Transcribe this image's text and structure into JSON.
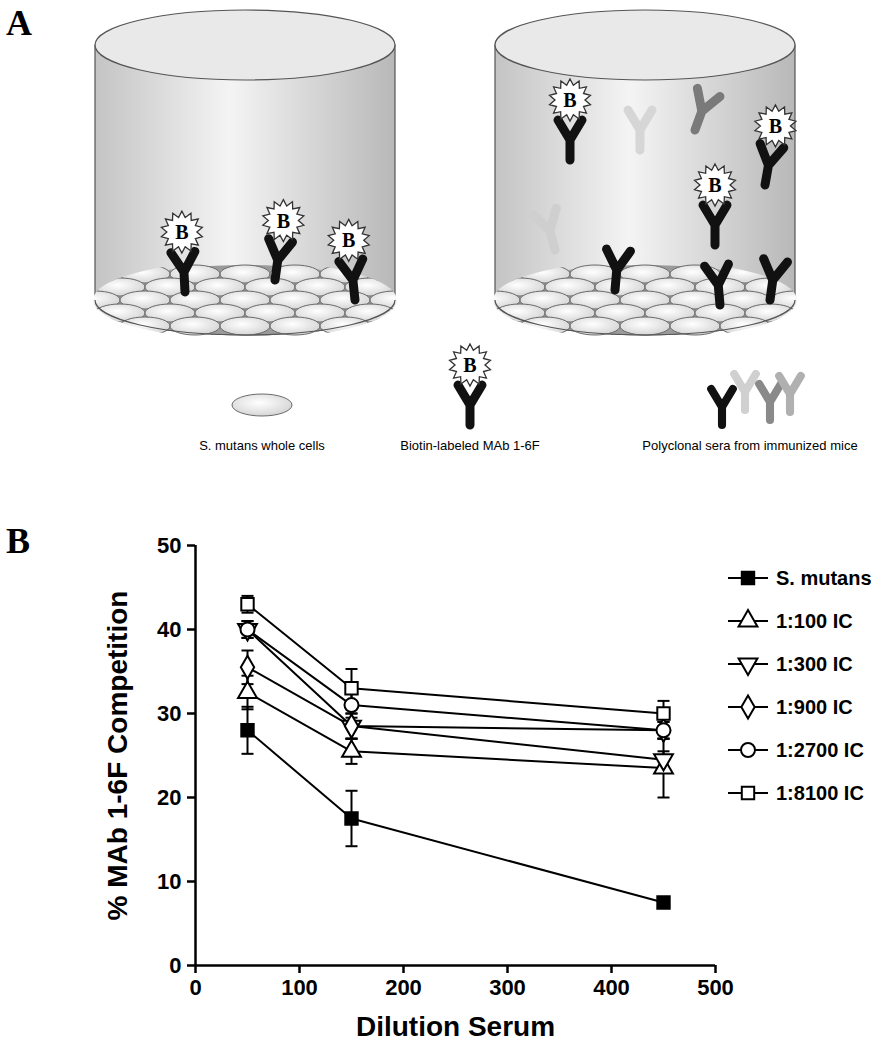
{
  "diagram": {
    "panel_label": "A",
    "biotin_mark": "B",
    "legend": {
      "cells": "S. mutans whole cells",
      "biotin_antibody": "Biotin-labeled MAb 1-6F",
      "polyclonal_sera": "Polyclonal sera from immunized mice"
    }
  },
  "chart_data": {
    "panel_label": "B",
    "type": "line",
    "x_label": "Dilution Serum",
    "y_label": "% MAb 1-6F Competition",
    "x": [
      50,
      150,
      450
    ],
    "xlim": [
      0,
      500
    ],
    "xticks": [
      0,
      100,
      200,
      300,
      400,
      500
    ],
    "ylim": [
      0,
      50
    ],
    "yticks": [
      0,
      10,
      20,
      30,
      40,
      50
    ],
    "grid": false,
    "legend": "right",
    "series": [
      {
        "name": "S. mutans",
        "color": "#000000",
        "marker": "filled_square",
        "values": [
          28,
          17.5,
          7.5
        ],
        "errors": [
          2.8,
          3.3,
          0.5
        ]
      },
      {
        "name": "1:100 IC",
        "color": "#000000",
        "marker": "open_triangle_up",
        "values": [
          32.5,
          25.5,
          23.5
        ],
        "errors": [
          2,
          1.5,
          3.5
        ]
      },
      {
        "name": "1:300 IC",
        "color": "#000000",
        "marker": "open_triangle_down",
        "values": [
          40,
          28.5,
          24.5
        ],
        "errors": [
          1,
          1.5,
          1
        ]
      },
      {
        "name": "1:900 IC",
        "color": "#000000",
        "marker": "open_diamond",
        "values": [
          35.5,
          28.5,
          28
        ],
        "errors": [
          2,
          1.5,
          1
        ]
      },
      {
        "name": "1:2700 IC",
        "color": "#000000",
        "marker": "open_circle",
        "values": [
          40,
          31,
          28
        ],
        "errors": [
          1,
          1.5,
          1
        ]
      },
      {
        "name": "1:8100 IC",
        "color": "#000000",
        "marker": "open_square",
        "values": [
          43,
          33,
          30
        ],
        "errors": [
          1,
          2.3,
          1.5
        ]
      }
    ]
  }
}
